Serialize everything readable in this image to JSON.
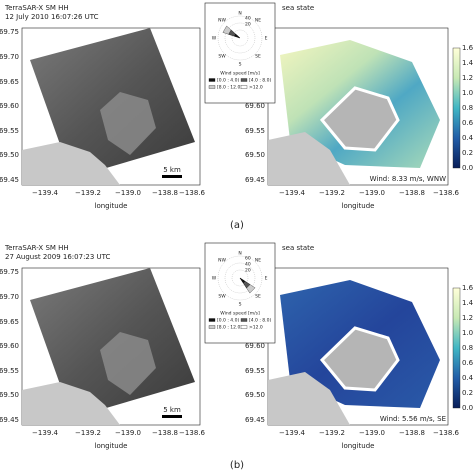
{
  "panels": [
    {
      "label": "(a)",
      "sar_title": "TerraSAR-X SM HH",
      "sar_date": "12 July 2010 16:07:26 UTC",
      "scale": "5 km",
      "sea_title": "sea state",
      "wind": "Wind: 8.33 m/s, WNW",
      "rose_rings": [
        "40",
        "20"
      ]
    },
    {
      "label": "(b)",
      "sar_title": "TerraSAR-X SM HH",
      "sar_date": "27 August 2009 16:07:23 UTC",
      "scale": "5 km",
      "sea_title": "sea state",
      "wind": "Wind: 5.56 m/s, SE",
      "rose_rings": [
        "60",
        "40",
        "20"
      ]
    }
  ],
  "yticks": [
    "69.75",
    "69.70",
    "69.65",
    "69.60",
    "69.55",
    "69.50",
    "69.45"
  ],
  "xticks": [
    "−139.4",
    "−139.2",
    "−139.0",
    "−138.8",
    "−138.6"
  ],
  "xlabel": "longitude",
  "colorbar_ticks": [
    "1.6",
    "1.4",
    "1.2",
    "1.0",
    "0.8",
    "0.6",
    "0.4",
    "0.2",
    "0.0"
  ],
  "compass": [
    "N",
    "NE",
    "E",
    "SE",
    "S",
    "SW",
    "W",
    "NW"
  ],
  "rose_legend": {
    "title": "Wind speed [m/s]",
    "bins": [
      "[0.0 : 4.0)",
      "[4.0 : 8.0)",
      "[8.0 : 12.0)",
      ">12.0"
    ]
  }
}
